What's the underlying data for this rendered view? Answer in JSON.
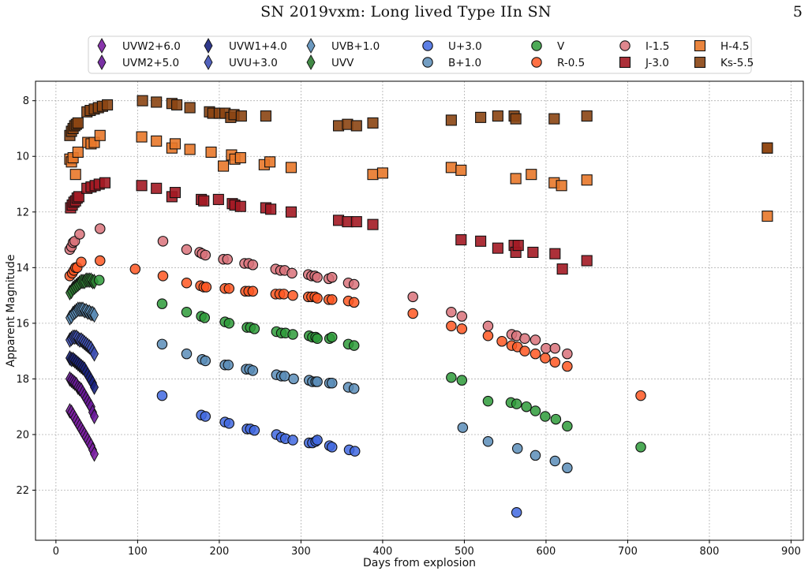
{
  "header": {
    "title": "SN 2019vxm: Long lived Type IIn SN",
    "page_number": "5"
  },
  "chart_data": {
    "type": "scatter",
    "title": "",
    "xlabel": "Days from explosion",
    "ylabel": "Apparent Magnitude",
    "xlim": [
      -25,
      915
    ],
    "ylim": [
      23.8,
      7.3
    ],
    "y_inverted": true,
    "xticks": [
      0,
      100,
      200,
      300,
      400,
      500,
      600,
      700,
      800,
      900
    ],
    "yticks": [
      8,
      10,
      12,
      14,
      16,
      18,
      20,
      22
    ],
    "grid": true,
    "legend_position": "top-center",
    "series": [
      {
        "name": "UVW2+6.0",
        "marker": "diamond",
        "color": "#7b1fa2",
        "x": [
          17,
          19,
          21,
          23,
          25,
          27,
          29,
          31,
          33,
          35,
          37,
          39,
          41,
          43,
          45,
          47
        ],
        "y": [
          19.15,
          19.2,
          19.3,
          19.4,
          19.5,
          19.6,
          19.7,
          19.8,
          19.9,
          20.0,
          20.1,
          20.2,
          20.3,
          20.4,
          20.55,
          20.7
        ]
      },
      {
        "name": "UVM2+5.0",
        "marker": "diamond",
        "color": "#6a1b9a",
        "x": [
          17,
          19,
          21,
          23,
          25,
          27,
          29,
          31,
          33,
          35,
          37,
          39,
          41,
          43,
          45,
          47
        ],
        "y": [
          18.0,
          18.05,
          18.1,
          18.15,
          18.2,
          18.3,
          18.35,
          18.4,
          18.5,
          18.6,
          18.7,
          18.8,
          18.9,
          19.0,
          19.2,
          19.35
        ]
      },
      {
        "name": "UVW1+4.0",
        "marker": "diamond",
        "color": "#1a237e",
        "x": [
          17,
          19,
          21,
          23,
          25,
          27,
          29,
          31,
          33,
          35,
          37,
          39,
          41,
          43,
          45,
          47
        ],
        "y": [
          17.25,
          17.3,
          17.3,
          17.35,
          17.4,
          17.45,
          17.5,
          17.55,
          17.6,
          17.65,
          17.75,
          17.85,
          17.95,
          18.05,
          18.15,
          18.3
        ]
      },
      {
        "name": "UVU+3.0",
        "marker": "diamond",
        "color": "#3f51b5",
        "x": [
          17,
          19,
          21,
          23,
          25,
          27,
          29,
          31,
          33,
          35,
          37,
          39,
          41,
          43,
          45,
          47
        ],
        "y": [
          16.6,
          16.55,
          16.5,
          16.5,
          16.5,
          16.55,
          16.6,
          16.6,
          16.65,
          16.7,
          16.75,
          16.8,
          16.85,
          16.9,
          17.0,
          17.1
        ]
      },
      {
        "name": "UVB+1.0",
        "marker": "diamond",
        "color": "#5b8db8",
        "x": [
          17,
          19,
          21,
          23,
          25,
          27,
          29,
          31,
          33,
          35,
          37,
          39,
          41,
          43,
          45,
          47
        ],
        "y": [
          15.8,
          15.75,
          15.65,
          15.6,
          15.55,
          15.5,
          15.5,
          15.5,
          15.5,
          15.55,
          15.55,
          15.6,
          15.6,
          15.65,
          15.65,
          15.7
        ]
      },
      {
        "name": "UVV",
        "marker": "diamond",
        "color": "#2e7d32",
        "x": [
          17,
          19,
          21,
          23,
          25,
          27,
          29,
          31,
          33,
          35,
          37,
          39,
          41,
          43,
          45,
          47
        ],
        "y": [
          14.9,
          14.85,
          14.75,
          14.7,
          14.65,
          14.6,
          14.55,
          14.5,
          14.5,
          14.5,
          14.45,
          14.45,
          14.45,
          14.45,
          14.5,
          14.5
        ]
      },
      {
        "name": "U+3.0",
        "marker": "circle",
        "color": "#4169e1",
        "x": [
          130,
          178,
          183,
          207,
          212,
          234,
          238,
          243,
          270,
          276,
          281,
          290,
          310,
          314,
          318,
          320,
          335,
          338,
          359,
          366,
          564
        ],
        "y": [
          18.6,
          19.3,
          19.35,
          19.55,
          19.6,
          19.8,
          19.8,
          19.85,
          20.0,
          20.1,
          20.15,
          20.2,
          20.3,
          20.3,
          20.25,
          20.2,
          20.4,
          20.45,
          20.55,
          20.6,
          22.8
        ]
      },
      {
        "name": "B+1.0",
        "marker": "circle",
        "color": "#5b8db8",
        "x": [
          130,
          160,
          179,
          183,
          207,
          211,
          233,
          237,
          241,
          270,
          276,
          280,
          291,
          310,
          314,
          318,
          320,
          335,
          338,
          358,
          365,
          498,
          529,
          565,
          587,
          611,
          626
        ],
        "y": [
          16.75,
          17.1,
          17.3,
          17.35,
          17.5,
          17.5,
          17.65,
          17.65,
          17.7,
          17.85,
          17.9,
          17.9,
          18.0,
          18.05,
          18.1,
          18.1,
          18.1,
          18.15,
          18.15,
          18.3,
          18.35,
          19.75,
          20.25,
          20.5,
          20.75,
          20.95,
          21.2
        ]
      },
      {
        "name": "V",
        "marker": "circle",
        "color": "#2e9b3a",
        "x": [
          53,
          130,
          160,
          178,
          182,
          207,
          212,
          234,
          238,
          243,
          270,
          276,
          281,
          290,
          310,
          314,
          318,
          320,
          335,
          338,
          358,
          365,
          484,
          497,
          529,
          557,
          564,
          576,
          587,
          599,
          612,
          626,
          716
        ],
        "y": [
          14.45,
          15.3,
          15.6,
          15.75,
          15.8,
          15.95,
          16.0,
          16.15,
          16.15,
          16.2,
          16.3,
          16.35,
          16.35,
          16.4,
          16.45,
          16.5,
          16.5,
          16.55,
          16.55,
          16.5,
          16.75,
          16.8,
          17.95,
          18.05,
          18.8,
          18.85,
          18.9,
          19.0,
          19.15,
          19.35,
          19.45,
          19.7,
          20.45
        ]
      },
      {
        "name": "R-0.5",
        "marker": "circle",
        "color": "#ff5722",
        "x": [
          17,
          20,
          22,
          24,
          26,
          31,
          54,
          97,
          131,
          160,
          177,
          181,
          184,
          207,
          212,
          232,
          236,
          241,
          269,
          274,
          279,
          290,
          309,
          313,
          317,
          320,
          334,
          338,
          358,
          365,
          437,
          484,
          497,
          529,
          546,
          558,
          565,
          574,
          587,
          599,
          611,
          626,
          716
        ],
        "y": [
          14.3,
          14.2,
          14.1,
          14.0,
          14.0,
          13.8,
          13.75,
          14.05,
          14.3,
          14.55,
          14.65,
          14.7,
          14.7,
          14.75,
          14.75,
          14.85,
          14.85,
          14.85,
          14.95,
          14.95,
          14.95,
          15.0,
          15.05,
          15.05,
          15.05,
          15.1,
          15.15,
          15.15,
          15.2,
          15.25,
          15.65,
          16.1,
          16.2,
          16.45,
          16.65,
          16.8,
          16.85,
          17.0,
          17.1,
          17.25,
          17.4,
          17.55,
          18.6
        ]
      },
      {
        "name": "I-1.5",
        "marker": "circle",
        "color": "#d9727a",
        "x": [
          17,
          19,
          21,
          23,
          29,
          54,
          131,
          160,
          176,
          179,
          183,
          205,
          210,
          231,
          236,
          241,
          269,
          275,
          280,
          289,
          309,
          313,
          317,
          320,
          334,
          338,
          358,
          365,
          437,
          484,
          497,
          529,
          558,
          564,
          574,
          587,
          600,
          611,
          626
        ],
        "y": [
          13.35,
          13.25,
          13.1,
          13.05,
          12.8,
          12.6,
          13.05,
          13.35,
          13.45,
          13.5,
          13.55,
          13.7,
          13.7,
          13.85,
          13.85,
          13.9,
          14.05,
          14.1,
          14.1,
          14.2,
          14.25,
          14.3,
          14.3,
          14.35,
          14.4,
          14.35,
          14.55,
          14.6,
          15.05,
          15.6,
          15.75,
          16.1,
          16.4,
          16.45,
          16.55,
          16.6,
          16.9,
          16.9,
          17.1
        ]
      },
      {
        "name": "J-3.0",
        "marker": "square",
        "color": "#a31a24",
        "x": [
          18,
          20,
          22,
          24,
          26,
          28,
          38,
          43,
          48,
          53,
          60,
          105,
          123,
          142,
          146,
          178,
          181,
          199,
          216,
          219,
          226,
          257,
          263,
          288,
          346,
          357,
          368,
          388,
          496,
          520,
          541,
          561,
          563,
          566,
          584,
          611,
          620,
          650
        ],
        "y": [
          11.85,
          11.75,
          11.65,
          11.6,
          11.5,
          11.45,
          11.15,
          11.1,
          11.05,
          11.0,
          10.95,
          11.05,
          11.15,
          11.45,
          11.3,
          11.55,
          11.6,
          11.55,
          11.7,
          11.75,
          11.8,
          11.85,
          11.9,
          12.0,
          12.3,
          12.35,
          12.35,
          12.45,
          13.0,
          13.05,
          13.3,
          13.2,
          13.45,
          13.2,
          13.45,
          13.5,
          14.05,
          13.75
        ]
      },
      {
        "name": "H-4.5",
        "marker": "square",
        "color": "#e8782a",
        "x": [
          17,
          19,
          21,
          24,
          27,
          39,
          43,
          47,
          54,
          105,
          123,
          142,
          146,
          164,
          190,
          205,
          215,
          219,
          226,
          255,
          262,
          288,
          388,
          400,
          484,
          496,
          563,
          582,
          610,
          619,
          650,
          871,
          871
        ],
        "y": [
          10.1,
          10.2,
          10.05,
          10.65,
          9.85,
          9.5,
          9.55,
          9.5,
          9.25,
          9.3,
          9.45,
          9.7,
          9.55,
          9.75,
          9.85,
          10.35,
          9.95,
          10.1,
          10.05,
          10.3,
          10.2,
          10.4,
          10.65,
          10.6,
          10.4,
          10.5,
          10.8,
          10.65,
          10.95,
          11.05,
          10.85,
          9.7,
          12.15
        ]
      },
      {
        "name": "Ks-5.5",
        "marker": "square",
        "color": "#8b4513",
        "x": [
          17,
          19,
          21,
          23,
          25,
          27,
          38,
          42,
          47,
          52,
          57,
          63,
          106,
          123,
          142,
          148,
          164,
          188,
          192,
          200,
          207,
          214,
          218,
          227,
          257,
          346,
          357,
          368,
          388,
          484,
          520,
          541,
          561,
          563,
          610,
          650,
          871
        ],
        "y": [
          9.25,
          9.1,
          9.0,
          8.9,
          8.85,
          8.8,
          8.4,
          8.35,
          8.3,
          8.25,
          8.2,
          8.15,
          8.0,
          8.05,
          8.1,
          8.15,
          8.25,
          8.4,
          8.45,
          8.45,
          8.45,
          8.6,
          8.5,
          8.55,
          8.55,
          8.9,
          8.85,
          8.9,
          8.8,
          8.7,
          8.6,
          8.55,
          8.55,
          8.65,
          8.65,
          8.55,
          9.7
        ]
      }
    ]
  }
}
